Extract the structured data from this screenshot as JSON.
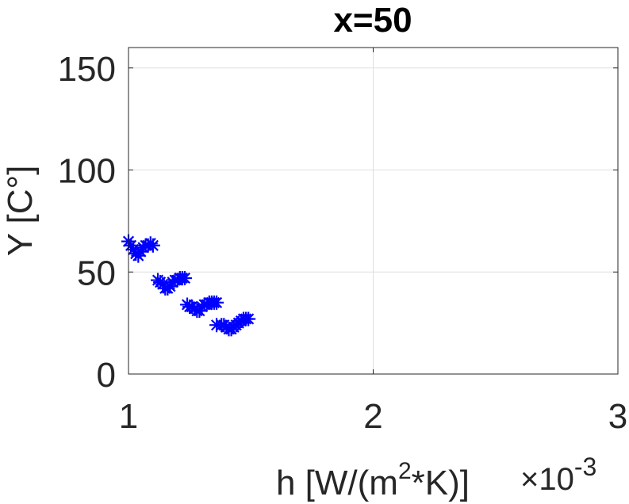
{
  "chart_data": {
    "type": "scatter",
    "title": "x=50",
    "xlabel": "h [W/(m",
    "xlabel_superscript": "2",
    "xlabel_suffix": "*K)]",
    "x_exponent_times": "×10",
    "x_exponent_power": "-3",
    "ylabel": "Y [C°]",
    "xlim": [
      1,
      3
    ],
    "ylim": [
      0,
      160
    ],
    "xticks": [
      1,
      2,
      3
    ],
    "xtick_labels": [
      "1",
      "2",
      "3"
    ],
    "yticks": [
      0,
      50,
      100,
      150
    ],
    "ytick_labels": [
      "0",
      "50",
      "100",
      "150"
    ],
    "grid": true,
    "marker": "*",
    "marker_color": "#0000ff",
    "grid_color": "#dfdfdf",
    "axis_color": "#262626",
    "series": [
      {
        "x": [
          1.0,
          1.01,
          1.02,
          1.03,
          1.04,
          1.05,
          1.06,
          1.07,
          1.08,
          1.09,
          1.1,
          1.12,
          1.13,
          1.14,
          1.15,
          1.16,
          1.17,
          1.18,
          1.19,
          1.2,
          1.21,
          1.22,
          1.23,
          1.24,
          1.25,
          1.26,
          1.27,
          1.28,
          1.29,
          1.3,
          1.31,
          1.32,
          1.33,
          1.34,
          1.35,
          1.36,
          1.36,
          1.38,
          1.39,
          1.4,
          1.41,
          1.42,
          1.43,
          1.44,
          1.45,
          1.46,
          1.47,
          1.48,
          1.49
        ],
        "y": [
          65,
          63,
          61,
          59,
          58,
          60,
          62,
          63,
          63,
          64,
          63,
          46,
          45,
          44,
          42,
          42,
          43,
          45,
          46,
          46,
          47,
          47,
          47,
          34,
          33,
          33,
          32,
          31,
          31,
          33,
          34,
          34,
          35,
          35,
          35,
          35,
          24,
          24,
          24,
          23,
          22,
          22,
          23,
          24,
          25,
          26,
          27,
          27,
          27
        ]
      }
    ]
  }
}
